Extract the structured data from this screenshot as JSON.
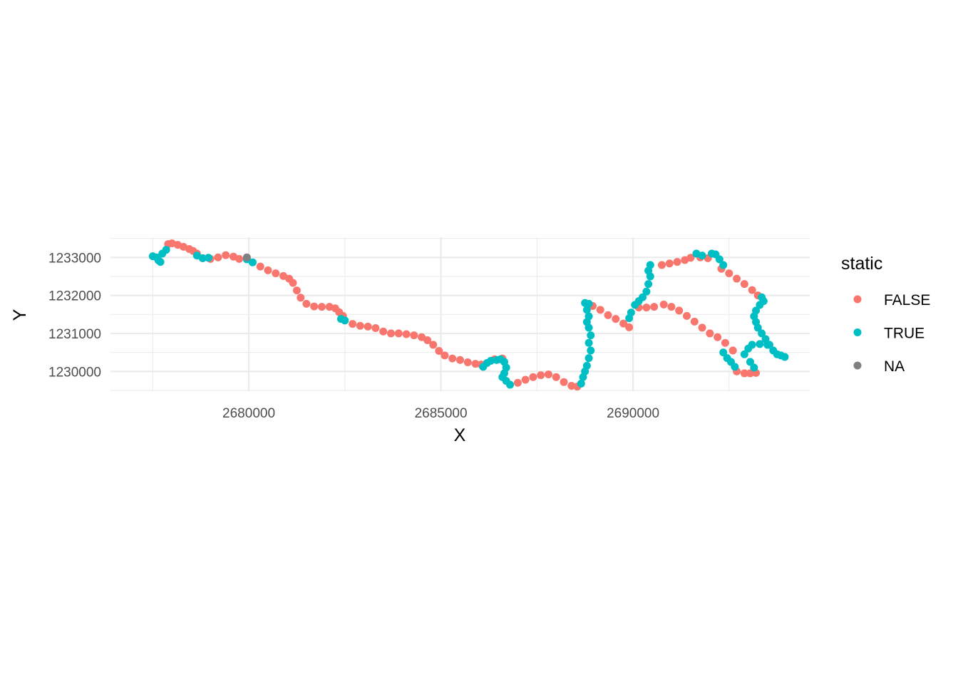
{
  "chart_data": {
    "type": "scatter",
    "title": "",
    "xlabel": "X",
    "ylabel": "Y",
    "xlim": [
      2676400,
      2694600
    ],
    "ylim": [
      1229480,
      1233530
    ],
    "x_ticks": [
      2680000,
      2685000,
      2690000
    ],
    "x_tick_labels": [
      "2680000",
      "2685000",
      "2690000"
    ],
    "x_minor_ticks": [
      2677500,
      2682500,
      2687500,
      2692500
    ],
    "y_ticks": [
      1230000,
      1231000,
      1232000,
      1233000
    ],
    "y_tick_labels": [
      "1230000",
      "1231000",
      "1232000",
      "1233000"
    ],
    "y_minor_ticks": [
      1229500,
      1230500,
      1231500,
      1232500,
      1233500
    ],
    "grid": true,
    "theme": "minimal",
    "legend": {
      "title": "static",
      "position": "right",
      "entries": [
        {
          "label": "FALSE",
          "color": "#F8766D"
        },
        {
          "label": "TRUE",
          "color": "#00BFC4"
        },
        {
          "label": "NA",
          "color": "#7F7F7F"
        }
      ]
    },
    "series": [
      {
        "name": "FALSE",
        "color": "#F8766D",
        "points": [
          [
            2677900,
            1233350
          ],
          [
            2678000,
            1233370
          ],
          [
            2678150,
            1233330
          ],
          [
            2678300,
            1233280
          ],
          [
            2678450,
            1233220
          ],
          [
            2678550,
            1233170
          ],
          [
            2678650,
            1233100
          ],
          [
            2678800,
            1232980
          ],
          [
            2679000,
            1232960
          ],
          [
            2679200,
            1233000
          ],
          [
            2679400,
            1233060
          ],
          [
            2679600,
            1233020
          ],
          [
            2679750,
            1232960
          ],
          [
            2680300,
            1232760
          ],
          [
            2680500,
            1232660
          ],
          [
            2680700,
            1232580
          ],
          [
            2680900,
            1232510
          ],
          [
            2681050,
            1232440
          ],
          [
            2681150,
            1232330
          ],
          [
            2681250,
            1232130
          ],
          [
            2681350,
            1231940
          ],
          [
            2681500,
            1231780
          ],
          [
            2681700,
            1231710
          ],
          [
            2681900,
            1231700
          ],
          [
            2682100,
            1231700
          ],
          [
            2682250,
            1231660
          ],
          [
            2682350,
            1231560
          ],
          [
            2682450,
            1231460
          ],
          [
            2682700,
            1231250
          ],
          [
            2682900,
            1231200
          ],
          [
            2683100,
            1231180
          ],
          [
            2683300,
            1231140
          ],
          [
            2683500,
            1231050
          ],
          [
            2683700,
            1231000
          ],
          [
            2683900,
            1231000
          ],
          [
            2684100,
            1230980
          ],
          [
            2684300,
            1230950
          ],
          [
            2684500,
            1230900
          ],
          [
            2684650,
            1230820
          ],
          [
            2684800,
            1230700
          ],
          [
            2684950,
            1230540
          ],
          [
            2685100,
            1230420
          ],
          [
            2685300,
            1230340
          ],
          [
            2685500,
            1230300
          ],
          [
            2685700,
            1230240
          ],
          [
            2685900,
            1230200
          ],
          [
            2686050,
            1230180
          ],
          [
            2686400,
            1230320
          ],
          [
            2686600,
            1230340
          ],
          [
            2687000,
            1229700
          ],
          [
            2687200,
            1229780
          ],
          [
            2687400,
            1229850
          ],
          [
            2687600,
            1229900
          ],
          [
            2687800,
            1229920
          ],
          [
            2688000,
            1229850
          ],
          [
            2688200,
            1229720
          ],
          [
            2688400,
            1229620
          ],
          [
            2688550,
            1229600
          ],
          [
            2688950,
            1231720
          ],
          [
            2689150,
            1231620
          ],
          [
            2689350,
            1231480
          ],
          [
            2689550,
            1231380
          ],
          [
            2689750,
            1231260
          ],
          [
            2689900,
            1231160
          ],
          [
            2690150,
            1231680
          ],
          [
            2690350,
            1231680
          ],
          [
            2690550,
            1231700
          ],
          [
            2690800,
            1231760
          ],
          [
            2691000,
            1231700
          ],
          [
            2691200,
            1231600
          ],
          [
            2691400,
            1231460
          ],
          [
            2691600,
            1231310
          ],
          [
            2691800,
            1231150
          ],
          [
            2692000,
            1231000
          ],
          [
            2692200,
            1230900
          ],
          [
            2692400,
            1230750
          ],
          [
            2692600,
            1230550
          ],
          [
            2690750,
            1232800
          ],
          [
            2690950,
            1232840
          ],
          [
            2691150,
            1232880
          ],
          [
            2691350,
            1232930
          ],
          [
            2691500,
            1232990
          ],
          [
            2691750,
            1233000
          ],
          [
            2691950,
            1232980
          ],
          [
            2692300,
            1232700
          ],
          [
            2692500,
            1232580
          ],
          [
            2692700,
            1232440
          ],
          [
            2692900,
            1232300
          ],
          [
            2693100,
            1232140
          ],
          [
            2693250,
            1232000
          ],
          [
            2692700,
            1230000
          ],
          [
            2692900,
            1229950
          ],
          [
            2693050,
            1229950
          ],
          [
            2693200,
            1229960
          ]
        ]
      },
      {
        "name": "TRUE",
        "color": "#00BFC4",
        "points": [
          [
            2677500,
            1233030
          ],
          [
            2677600,
            1233000
          ],
          [
            2677650,
            1232920
          ],
          [
            2677700,
            1232880
          ],
          [
            2677750,
            1233100
          ],
          [
            2677850,
            1233200
          ],
          [
            2678650,
            1233050
          ],
          [
            2678800,
            1232980
          ],
          [
            2678950,
            1232990
          ],
          [
            2679950,
            1232950
          ],
          [
            2680100,
            1232870
          ],
          [
            2682400,
            1231380
          ],
          [
            2682500,
            1231340
          ],
          [
            2686100,
            1230120
          ],
          [
            2686200,
            1230220
          ],
          [
            2686300,
            1230280
          ],
          [
            2686450,
            1230300
          ],
          [
            2686550,
            1230320
          ],
          [
            2686650,
            1230250
          ],
          [
            2686700,
            1230100
          ],
          [
            2686650,
            1229950
          ],
          [
            2686600,
            1229850
          ],
          [
            2686700,
            1229750
          ],
          [
            2686800,
            1229650
          ],
          [
            2688650,
            1229680
          ],
          [
            2688700,
            1229850
          ],
          [
            2688750,
            1230000
          ],
          [
            2688800,
            1230150
          ],
          [
            2688850,
            1230350
          ],
          [
            2688900,
            1230550
          ],
          [
            2688850,
            1230750
          ],
          [
            2688900,
            1230950
          ],
          [
            2688850,
            1231150
          ],
          [
            2688800,
            1231300
          ],
          [
            2688850,
            1231450
          ],
          [
            2688800,
            1231620
          ],
          [
            2688850,
            1231780
          ],
          [
            2688750,
            1231800
          ],
          [
            2689900,
            1231400
          ],
          [
            2689950,
            1231550
          ],
          [
            2690050,
            1231750
          ],
          [
            2690150,
            1231850
          ],
          [
            2690250,
            1231950
          ],
          [
            2690350,
            1232100
          ],
          [
            2690400,
            1232300
          ],
          [
            2690450,
            1232500
          ],
          [
            2690400,
            1232650
          ],
          [
            2690450,
            1232800
          ],
          [
            2691650,
            1233100
          ],
          [
            2691800,
            1233050
          ],
          [
            2692050,
            1233100
          ],
          [
            2692150,
            1233080
          ],
          [
            2692250,
            1232950
          ],
          [
            2692350,
            1232800
          ],
          [
            2693350,
            1231950
          ],
          [
            2693400,
            1231850
          ],
          [
            2693300,
            1231750
          ],
          [
            2693200,
            1231600
          ],
          [
            2693150,
            1231450
          ],
          [
            2693200,
            1231300
          ],
          [
            2693250,
            1231150
          ],
          [
            2693350,
            1231000
          ],
          [
            2693450,
            1230850
          ],
          [
            2693550,
            1230700
          ],
          [
            2693650,
            1230550
          ],
          [
            2693750,
            1230450
          ],
          [
            2693850,
            1230420
          ],
          [
            2693950,
            1230380
          ],
          [
            2693500,
            1230700
          ],
          [
            2693300,
            1230720
          ],
          [
            2693100,
            1230700
          ],
          [
            2693000,
            1230600
          ],
          [
            2692900,
            1230450
          ],
          [
            2693050,
            1230250
          ],
          [
            2693150,
            1230100
          ],
          [
            2692350,
            1230500
          ],
          [
            2692450,
            1230350
          ],
          [
            2692550,
            1230250
          ],
          [
            2692650,
            1230120
          ]
        ]
      },
      {
        "name": "NA",
        "color": "#7F7F7F",
        "points": [
          [
            2679950,
            1233000
          ]
        ]
      }
    ]
  }
}
